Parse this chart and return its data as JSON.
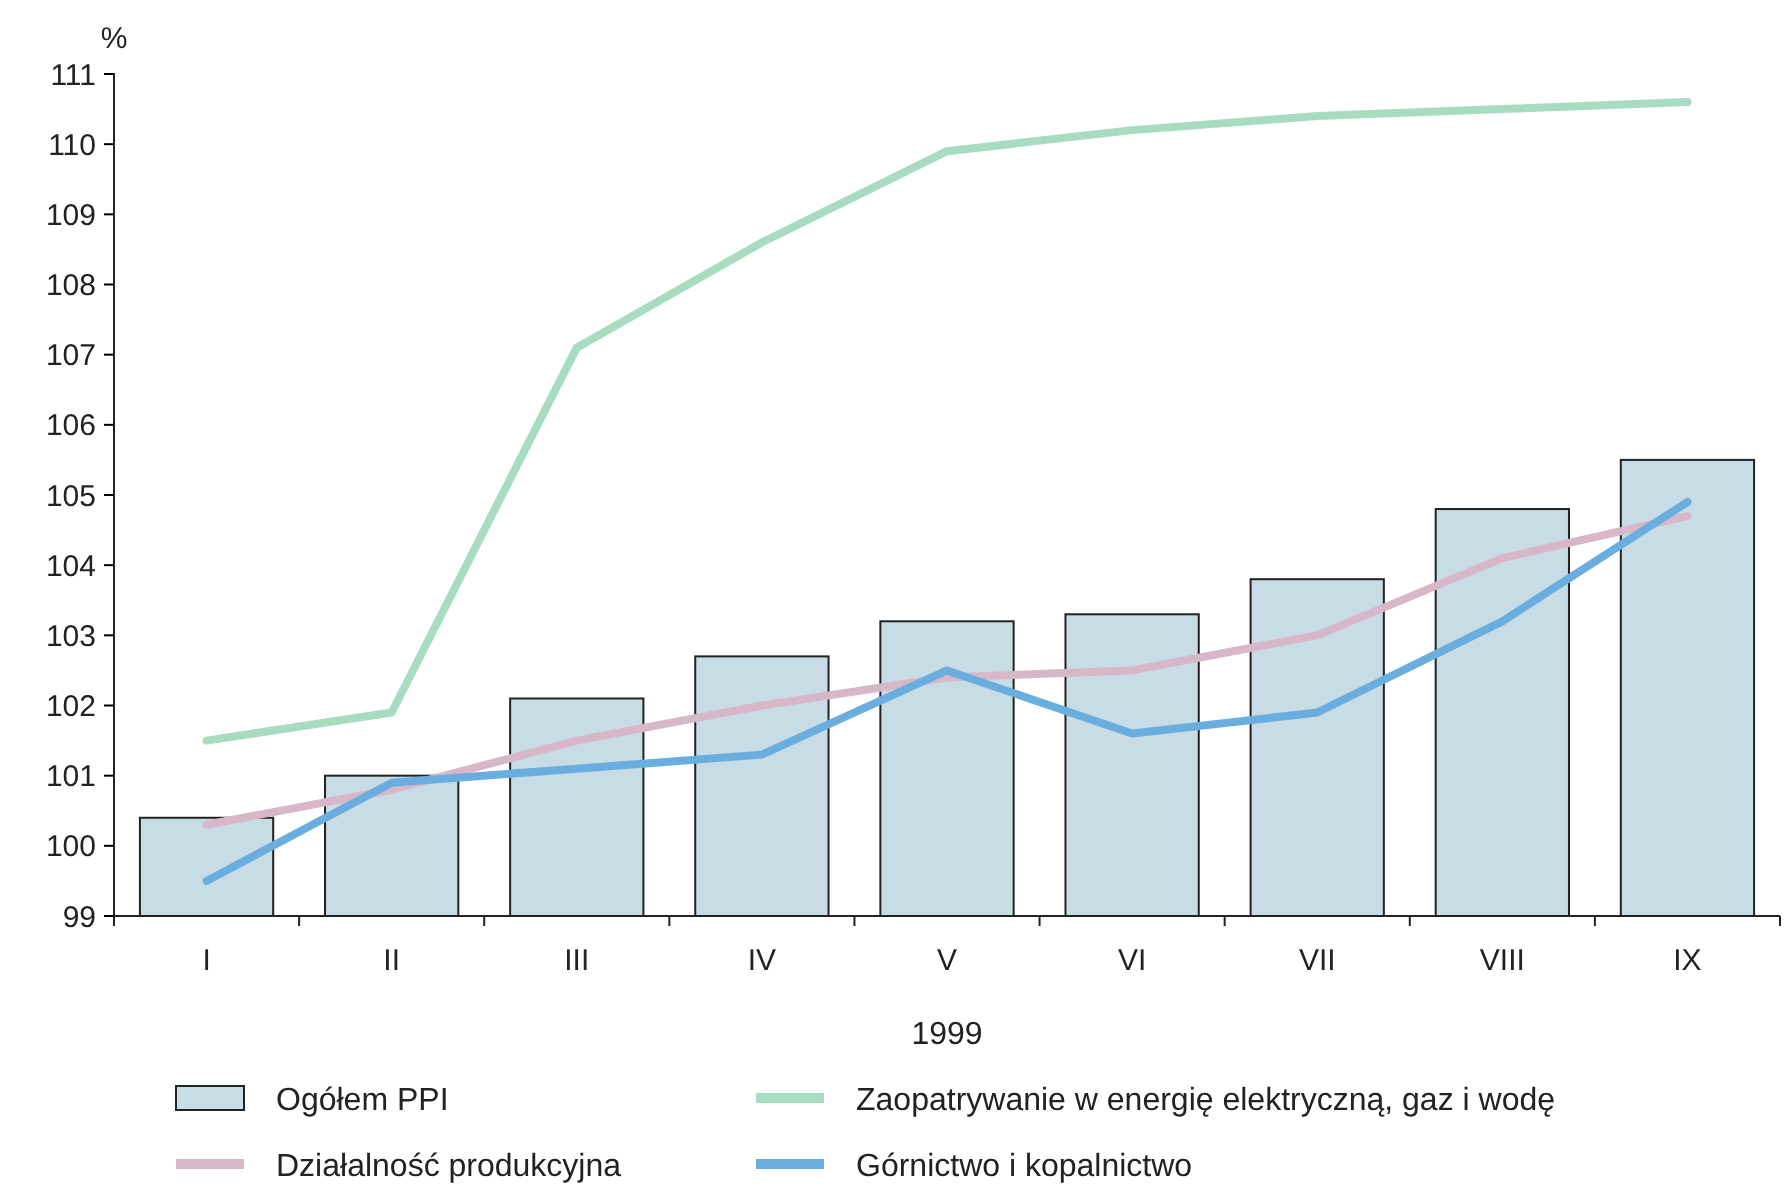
{
  "chart_data": {
    "type": "bar",
    "ylabel": "%",
    "xlabel": "1999",
    "categories": [
      "I",
      "II",
      "III",
      "IV",
      "V",
      "VI",
      "VII",
      "VIII",
      "IX"
    ],
    "ylim": [
      99,
      111
    ],
    "yticks": [
      99,
      100,
      101,
      102,
      103,
      104,
      105,
      106,
      107,
      108,
      109,
      110,
      111
    ],
    "grid": false,
    "legend": "bottom",
    "series": [
      {
        "name": "Ogółem PPI",
        "color": "#c8dce6",
        "values": [
          100.4,
          101.0,
          102.1,
          102.7,
          103.2,
          103.3,
          103.8,
          104.8,
          105.5
        ]
      },
      {
        "name": "Zaopatrywanie w energię elektryczną, gaz i wodę",
        "type": "line",
        "color": "#a8dcc0",
        "values": [
          101.5,
          101.9,
          107.1,
          108.6,
          109.9,
          110.2,
          110.4,
          110.5,
          110.6
        ]
      },
      {
        "name": "Działalność produkcyjna",
        "type": "line",
        "color": "#d8b8c8",
        "values": [
          100.3,
          100.8,
          101.5,
          102.0,
          102.4,
          102.5,
          103.0,
          104.1,
          104.7
        ]
      },
      {
        "name": "Górnictwo i kopalnictwo",
        "type": "line",
        "color": "#6aaee0",
        "values": [
          99.5,
          100.9,
          101.1,
          101.3,
          102.5,
          101.6,
          101.9,
          103.2,
          104.9
        ]
      }
    ]
  }
}
